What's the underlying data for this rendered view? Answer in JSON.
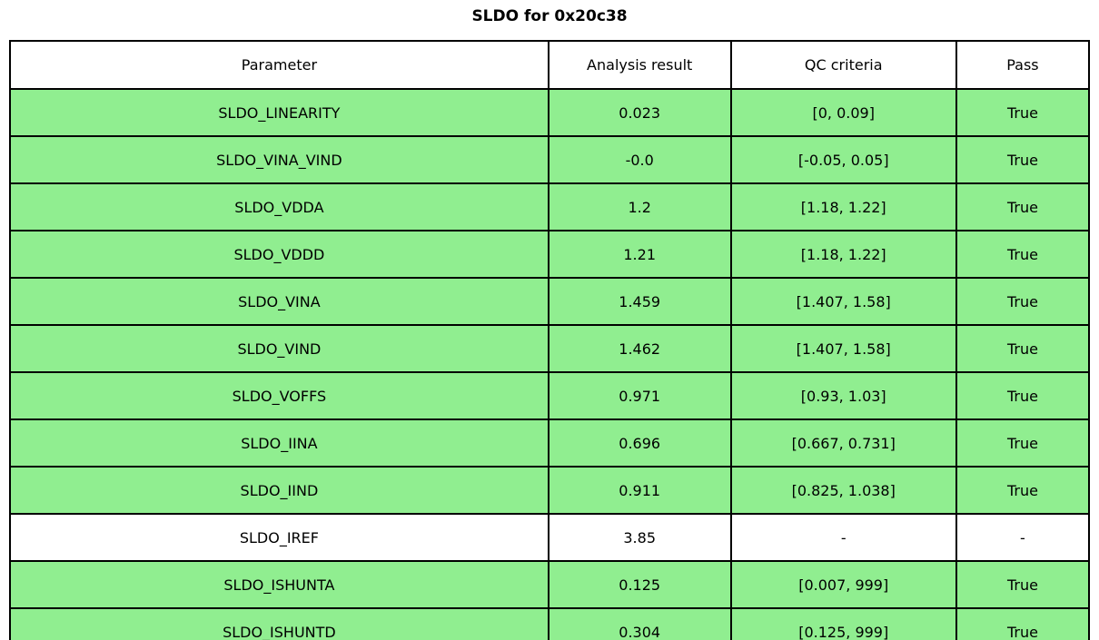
{
  "title": "SLDO for 0x20c38",
  "colors": {
    "pass_row": "#90EE90",
    "neutral_row": "#FFFFFF",
    "border": "#000000"
  },
  "chart_data": {
    "type": "table",
    "title": "SLDO for 0x20c38",
    "columns": [
      "Parameter",
      "Analysis result",
      "QC criteria",
      "Pass"
    ],
    "rows": [
      {
        "parameter": "SLDO_LINEARITY",
        "result": "0.023",
        "criteria": "[0, 0.09]",
        "pass": "True",
        "highlight": true
      },
      {
        "parameter": "SLDO_VINA_VIND",
        "result": "-0.0",
        "criteria": "[-0.05, 0.05]",
        "pass": "True",
        "highlight": true
      },
      {
        "parameter": "SLDO_VDDA",
        "result": "1.2",
        "criteria": "[1.18, 1.22]",
        "pass": "True",
        "highlight": true
      },
      {
        "parameter": "SLDO_VDDD",
        "result": "1.21",
        "criteria": "[1.18, 1.22]",
        "pass": "True",
        "highlight": true
      },
      {
        "parameter": "SLDO_VINA",
        "result": "1.459",
        "criteria": "[1.407, 1.58]",
        "pass": "True",
        "highlight": true
      },
      {
        "parameter": "SLDO_VIND",
        "result": "1.462",
        "criteria": "[1.407, 1.58]",
        "pass": "True",
        "highlight": true
      },
      {
        "parameter": "SLDO_VOFFS",
        "result": "0.971",
        "criteria": "[0.93, 1.03]",
        "pass": "True",
        "highlight": true
      },
      {
        "parameter": "SLDO_IINA",
        "result": "0.696",
        "criteria": "[0.667, 0.731]",
        "pass": "True",
        "highlight": true
      },
      {
        "parameter": "SLDO_IIND",
        "result": "0.911",
        "criteria": "[0.825, 1.038]",
        "pass": "True",
        "highlight": true
      },
      {
        "parameter": "SLDO_IREF",
        "result": "3.85",
        "criteria": "-",
        "pass": "-",
        "highlight": false
      },
      {
        "parameter": "SLDO_ISHUNTA",
        "result": "0.125",
        "criteria": "[0.007, 999]",
        "pass": "True",
        "highlight": true
      },
      {
        "parameter": "SLDO_ISHUNTD",
        "result": "0.304",
        "criteria": "[0.125, 999]",
        "pass": "True",
        "highlight": true
      }
    ]
  }
}
